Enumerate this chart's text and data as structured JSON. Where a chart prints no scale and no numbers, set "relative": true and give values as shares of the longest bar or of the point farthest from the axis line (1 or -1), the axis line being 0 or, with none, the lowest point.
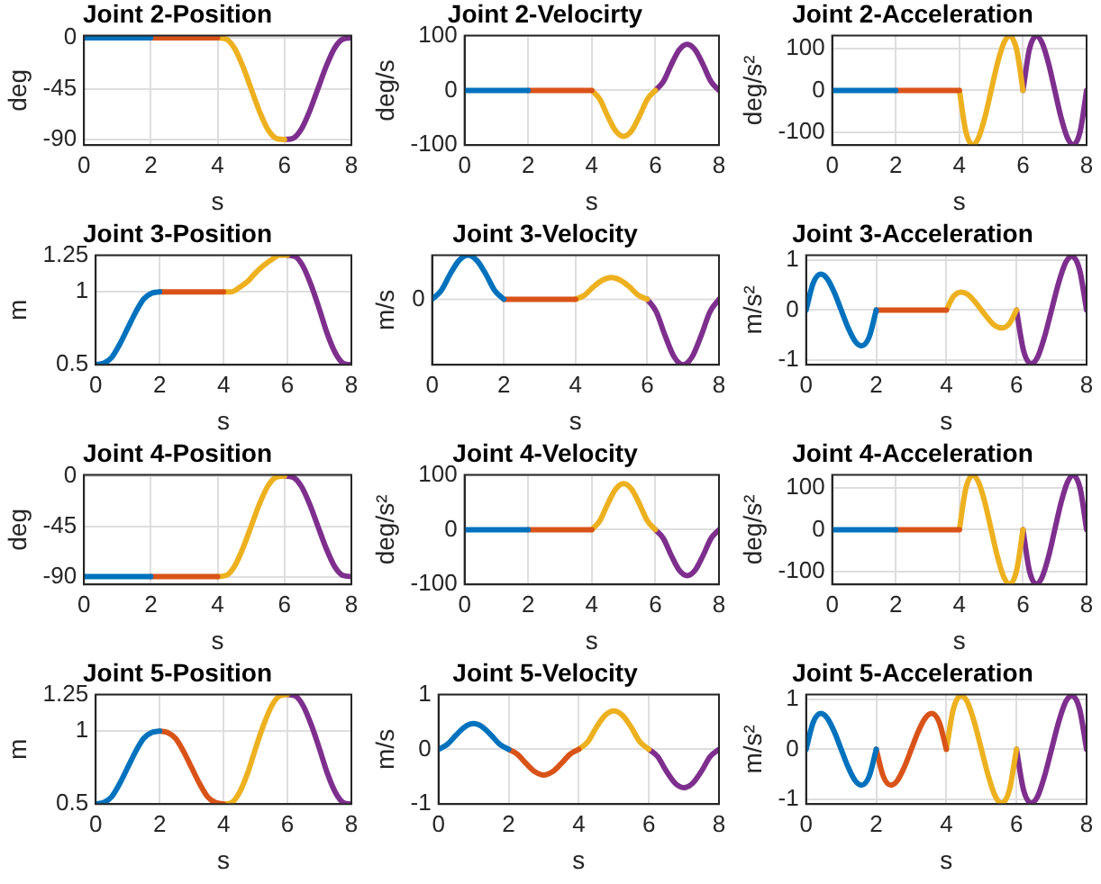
{
  "chart_data": [
    {
      "type": "line",
      "title": "Joint 2-Position",
      "xlabel": "s",
      "ylabel": "deg",
      "xlim": [
        0,
        8
      ],
      "xticks": [
        0,
        2,
        4,
        6,
        8
      ],
      "ylim": [
        -95,
        2
      ],
      "yticks": [
        -90,
        -45,
        0
      ],
      "grid": true,
      "series": [
        {
          "color": "#0072bd",
          "x": [
            0,
            0.25,
            0.5,
            0.75,
            1,
            1.25,
            1.5,
            1.75,
            2
          ],
          "values": [
            0,
            0,
            0,
            0,
            0,
            0,
            0,
            0,
            0
          ]
        },
        {
          "color": "#d95319",
          "x": [
            2,
            2.25,
            2.5,
            2.75,
            3,
            3.25,
            3.5,
            3.75,
            4
          ],
          "values": [
            0,
            0,
            0,
            0,
            0,
            0,
            0,
            0,
            0
          ]
        },
        {
          "color": "#edb120",
          "x": [
            4,
            4.25,
            4.5,
            4.75,
            5,
            5.25,
            5.5,
            5.75,
            6
          ],
          "values": [
            0,
            -1,
            -9,
            -25,
            -45,
            -65,
            -81,
            -89,
            -90
          ]
        },
        {
          "color": "#7e2f8e",
          "x": [
            6,
            6.25,
            6.5,
            6.75,
            7,
            7.25,
            7.5,
            7.75,
            8
          ],
          "values": [
            -90,
            -89,
            -81,
            -65,
            -45,
            -25,
            -9,
            -1,
            0
          ]
        }
      ]
    },
    {
      "type": "line",
      "title": "Joint 2-Velocirty",
      "xlabel": "s",
      "ylabel": "deg/s",
      "xlim": [
        0,
        8
      ],
      "xticks": [
        0,
        2,
        4,
        6,
        8
      ],
      "ylim": [
        -100,
        100
      ],
      "yticks": [
        -100,
        0,
        100
      ],
      "grid": true,
      "series": [
        {
          "color": "#0072bd",
          "x": [
            0,
            0.25,
            0.5,
            0.75,
            1,
            1.25,
            1.5,
            1.75,
            2
          ],
          "values": [
            0,
            0,
            0,
            0,
            0,
            0,
            0,
            0,
            0
          ]
        },
        {
          "color": "#d95319",
          "x": [
            2,
            2.25,
            2.5,
            2.75,
            3,
            3.25,
            3.5,
            3.75,
            4
          ],
          "values": [
            0,
            0,
            0,
            0,
            0,
            0,
            0,
            0,
            0
          ]
        },
        {
          "color": "#edb120",
          "x": [
            4,
            4.25,
            4.5,
            4.75,
            5,
            5.25,
            5.5,
            5.75,
            6
          ],
          "values": [
            0,
            -16,
            -47,
            -74,
            -84,
            -74,
            -47,
            -16,
            0
          ]
        },
        {
          "color": "#7e2f8e",
          "x": [
            6,
            6.25,
            6.5,
            6.75,
            7,
            7.25,
            7.5,
            7.75,
            8
          ],
          "values": [
            0,
            16,
            47,
            74,
            84,
            74,
            47,
            16,
            0
          ]
        }
      ]
    },
    {
      "type": "line",
      "title": "Joint 2-Acceleration",
      "xlabel": "s",
      "ylabel": "deg/s²",
      "xlim": [
        0,
        8
      ],
      "xticks": [
        0,
        2,
        4,
        6,
        8
      ],
      "ylim": [
        -130,
        130
      ],
      "yticks": [
        -100,
        0,
        100
      ],
      "grid": true,
      "series": [
        {
          "color": "#0072bd",
          "x": [
            0,
            0.2,
            0.42,
            0.6,
            0.8,
            1,
            1.2,
            1.4,
            1.58,
            1.8,
            2
          ],
          "values": [
            0,
            0,
            0,
            0,
            0,
            0,
            0,
            0,
            0,
            0,
            0
          ]
        },
        {
          "color": "#d95319",
          "x": [
            2,
            2.2,
            2.42,
            2.6,
            2.8,
            3,
            3.2,
            3.4,
            3.58,
            3.8,
            4
          ],
          "values": [
            0,
            0,
            0,
            0,
            0,
            0,
            0,
            0,
            0,
            0,
            0
          ]
        },
        {
          "color": "#edb120",
          "x": [
            4,
            4.2,
            4.42,
            4.6,
            4.8,
            5,
            5.2,
            5.4,
            5.58,
            5.8,
            6
          ],
          "values": [
            0,
            -97,
            -129,
            -113,
            -65,
            0,
            65,
            113,
            129,
            97,
            0
          ]
        },
        {
          "color": "#7e2f8e",
          "x": [
            6,
            6.2,
            6.42,
            6.6,
            6.8,
            7,
            7.2,
            7.4,
            7.58,
            7.8,
            8
          ],
          "values": [
            0,
            97,
            129,
            113,
            65,
            0,
            -65,
            -113,
            -129,
            -97,
            0
          ]
        }
      ]
    },
    {
      "type": "line",
      "title": "Joint 3-Position",
      "xlabel": "s",
      "ylabel": "m",
      "xlim": [
        0,
        8
      ],
      "xticks": [
        0,
        2,
        4,
        6,
        8
      ],
      "ylim": [
        0.5,
        1.25
      ],
      "yticks": [
        0.5,
        1,
        1.25
      ],
      "grid": true,
      "series": [
        {
          "color": "#0072bd",
          "x": [
            0,
            0.25,
            0.5,
            0.75,
            1,
            1.25,
            1.5,
            1.75,
            2
          ],
          "values": [
            0.5,
            0.51,
            0.55,
            0.64,
            0.75,
            0.86,
            0.95,
            0.99,
            1
          ]
        },
        {
          "color": "#d95319",
          "x": [
            2,
            2.25,
            2.5,
            2.75,
            3,
            3.25,
            3.5,
            3.75,
            4
          ],
          "values": [
            1,
            1,
            1,
            1,
            1,
            1,
            1,
            1,
            1
          ]
        },
        {
          "color": "#edb120",
          "x": [
            4,
            4.25,
            4.5,
            4.75,
            5,
            5.25,
            5.5,
            5.75,
            6
          ],
          "values": [
            1,
            1,
            1.03,
            1.07,
            1.13,
            1.18,
            1.22,
            1.25,
            1.25
          ]
        },
        {
          "color": "#7e2f8e",
          "x": [
            6,
            6.25,
            6.5,
            6.75,
            7,
            7.25,
            7.5,
            7.75,
            8
          ],
          "values": [
            1.25,
            1.24,
            1.17,
            1.04,
            0.88,
            0.71,
            0.58,
            0.51,
            0.5
          ]
        }
      ]
    },
    {
      "type": "line",
      "title": "Joint 3-Velocity",
      "xlabel": "s",
      "ylabel": "m/s",
      "xlim": [
        0,
        8
      ],
      "xticks": [
        0,
        2,
        4,
        6,
        8
      ],
      "relative": true,
      "ref_lines": [
        {
          "axis": "y",
          "value": 0,
          "label": "0",
          "color": "#dedede"
        }
      ],
      "grid": "x",
      "series": [
        {
          "color": "#0072bd",
          "x": [
            0,
            0.25,
            0.5,
            0.75,
            1,
            1.25,
            1.5,
            1.75,
            2
          ],
          "values": [
            0,
            0.13,
            0.38,
            0.59,
            0.67,
            0.59,
            0.38,
            0.13,
            0
          ]
        },
        {
          "color": "#d95319",
          "x": [
            2,
            2.25,
            2.5,
            2.75,
            3,
            3.25,
            3.5,
            3.75,
            4
          ],
          "values": [
            0,
            0,
            0,
            0,
            0,
            0,
            0,
            0,
            0
          ]
        },
        {
          "color": "#edb120",
          "x": [
            4,
            4.25,
            4.5,
            4.75,
            5,
            5.25,
            5.5,
            5.75,
            6
          ],
          "values": [
            0,
            0.06,
            0.19,
            0.29,
            0.33,
            0.29,
            0.19,
            0.06,
            0
          ]
        },
        {
          "color": "#7e2f8e",
          "x": [
            6,
            6.25,
            6.5,
            6.75,
            7,
            7.25,
            7.5,
            7.75,
            8
          ],
          "values": [
            0,
            -0.19,
            -0.56,
            -0.88,
            -1,
            -0.88,
            -0.56,
            -0.19,
            0
          ]
        }
      ]
    },
    {
      "type": "line",
      "title": "Joint 3-Acceleration",
      "xlabel": "s",
      "ylabel": "m/s²",
      "xlim": [
        0,
        8
      ],
      "xticks": [
        0,
        2,
        4,
        6,
        8
      ],
      "ylim": [
        -1.1,
        1.1
      ],
      "yticks": [
        -1,
        0,
        1
      ],
      "grid": true,
      "series": [
        {
          "color": "#0072bd",
          "x": [
            0,
            0.2,
            0.42,
            0.6,
            0.8,
            1,
            1.2,
            1.4,
            1.58,
            1.8,
            2
          ],
          "values": [
            0,
            0.54,
            0.72,
            0.63,
            0.36,
            0,
            -0.36,
            -0.63,
            -0.72,
            -0.54,
            0
          ]
        },
        {
          "color": "#d95319",
          "x": [
            2,
            2.2,
            2.42,
            2.6,
            2.8,
            3,
            3.2,
            3.4,
            3.58,
            3.8,
            4
          ],
          "values": [
            0,
            0,
            0,
            0,
            0,
            0,
            0,
            0,
            0,
            0,
            0
          ]
        },
        {
          "color": "#edb120",
          "x": [
            4,
            4.2,
            4.42,
            4.6,
            4.8,
            5,
            5.2,
            5.4,
            5.58,
            5.8,
            6
          ],
          "values": [
            0,
            0.27,
            0.36,
            0.32,
            0.18,
            0,
            -0.18,
            -0.32,
            -0.36,
            -0.27,
            0
          ]
        },
        {
          "color": "#7e2f8e",
          "x": [
            6,
            6.2,
            6.42,
            6.6,
            6.8,
            7,
            7.2,
            7.4,
            7.58,
            7.8,
            8
          ],
          "values": [
            0,
            -0.81,
            -1.08,
            -0.95,
            -0.54,
            0,
            0.54,
            0.95,
            1.08,
            0.81,
            0
          ]
        }
      ]
    },
    {
      "type": "line",
      "title": "Joint 4-Position",
      "xlabel": "s",
      "ylabel": "deg",
      "xlim": [
        0,
        8
      ],
      "xticks": [
        0,
        2,
        4,
        6,
        8
      ],
      "ylim": [
        -97,
        1
      ],
      "yticks": [
        -90,
        -45,
        0
      ],
      "grid": true,
      "series": [
        {
          "color": "#0072bd",
          "x": [
            0,
            0.25,
            0.5,
            0.75,
            1,
            1.25,
            1.5,
            1.75,
            2
          ],
          "values": [
            -90,
            -90,
            -90,
            -90,
            -90,
            -90,
            -90,
            -90,
            -90
          ]
        },
        {
          "color": "#d95319",
          "x": [
            2,
            2.25,
            2.5,
            2.75,
            3,
            3.25,
            3.5,
            3.75,
            4
          ],
          "values": [
            -90,
            -90,
            -90,
            -90,
            -90,
            -90,
            -90,
            -90,
            -90
          ]
        },
        {
          "color": "#edb120",
          "x": [
            4,
            4.25,
            4.5,
            4.75,
            5,
            5.25,
            5.5,
            5.75,
            6
          ],
          "values": [
            -90,
            -89,
            -81,
            -65,
            -45,
            -25,
            -9,
            -1,
            0
          ]
        },
        {
          "color": "#7e2f8e",
          "x": [
            6,
            6.25,
            6.5,
            6.75,
            7,
            7.25,
            7.5,
            7.75,
            8
          ],
          "values": [
            0,
            -1,
            -9,
            -25,
            -45,
            -65,
            -81,
            -89,
            -90
          ]
        }
      ]
    },
    {
      "type": "line",
      "title": "Joint 4-Velocity",
      "xlabel": "s",
      "ylabel": "deg/s²",
      "xlim": [
        0,
        8
      ],
      "xticks": [
        0,
        2,
        4,
        6,
        8
      ],
      "ylim": [
        -100,
        100
      ],
      "yticks": [
        -100,
        0,
        100
      ],
      "grid": true,
      "series": [
        {
          "color": "#0072bd",
          "x": [
            0,
            0.25,
            0.5,
            0.75,
            1,
            1.25,
            1.5,
            1.75,
            2
          ],
          "values": [
            0,
            0,
            0,
            0,
            0,
            0,
            0,
            0,
            0
          ]
        },
        {
          "color": "#d95319",
          "x": [
            2,
            2.25,
            2.5,
            2.75,
            3,
            3.25,
            3.5,
            3.75,
            4
          ],
          "values": [
            0,
            0,
            0,
            0,
            0,
            0,
            0,
            0,
            0
          ]
        },
        {
          "color": "#edb120",
          "x": [
            4,
            4.25,
            4.5,
            4.75,
            5,
            5.25,
            5.5,
            5.75,
            6
          ],
          "values": [
            0,
            16,
            47,
            74,
            84,
            74,
            47,
            16,
            0
          ]
        },
        {
          "color": "#7e2f8e",
          "x": [
            6,
            6.25,
            6.5,
            6.75,
            7,
            7.25,
            7.5,
            7.75,
            8
          ],
          "values": [
            0,
            -16,
            -47,
            -74,
            -84,
            -74,
            -47,
            -16,
            0
          ]
        }
      ]
    },
    {
      "type": "line",
      "title": "Joint 4-Acceleration",
      "xlabel": "s",
      "ylabel": "deg/s²",
      "xlim": [
        0,
        8
      ],
      "xticks": [
        0,
        2,
        4,
        6,
        8
      ],
      "ylim": [
        -130,
        130
      ],
      "yticks": [
        -100,
        0,
        100
      ],
      "grid": true,
      "series": [
        {
          "color": "#0072bd",
          "x": [
            0,
            0.2,
            0.42,
            0.6,
            0.8,
            1,
            1.2,
            1.4,
            1.58,
            1.8,
            2
          ],
          "values": [
            0,
            0,
            0,
            0,
            0,
            0,
            0,
            0,
            0,
            0,
            0
          ]
        },
        {
          "color": "#d95319",
          "x": [
            2,
            2.2,
            2.42,
            2.6,
            2.8,
            3,
            3.2,
            3.4,
            3.58,
            3.8,
            4
          ],
          "values": [
            0,
            0,
            0,
            0,
            0,
            0,
            0,
            0,
            0,
            0,
            0
          ]
        },
        {
          "color": "#edb120",
          "x": [
            4,
            4.2,
            4.42,
            4.6,
            4.8,
            5,
            5.2,
            5.4,
            5.58,
            5.8,
            6
          ],
          "values": [
            0,
            97,
            129,
            113,
            65,
            0,
            -65,
            -113,
            -129,
            -97,
            0
          ]
        },
        {
          "color": "#7e2f8e",
          "x": [
            6,
            6.2,
            6.42,
            6.6,
            6.8,
            7,
            7.2,
            7.4,
            7.58,
            7.8,
            8
          ],
          "values": [
            0,
            -97,
            -129,
            -113,
            -65,
            0,
            65,
            113,
            129,
            97,
            0
          ]
        }
      ]
    },
    {
      "type": "line",
      "title": "Joint 5-Position",
      "xlabel": "s",
      "ylabel": "m",
      "xlim": [
        0,
        8
      ],
      "xticks": [
        0,
        2,
        4,
        6,
        8
      ],
      "ylim": [
        0.5,
        1.25
      ],
      "yticks": [
        0.5,
        1,
        1.25
      ],
      "grid": true,
      "series": [
        {
          "color": "#0072bd",
          "x": [
            0,
            0.25,
            0.5,
            0.75,
            1,
            1.25,
            1.5,
            1.75,
            2
          ],
          "values": [
            0.5,
            0.51,
            0.55,
            0.64,
            0.75,
            0.86,
            0.95,
            0.99,
            1
          ]
        },
        {
          "color": "#d95319",
          "x": [
            2,
            2.25,
            2.5,
            2.75,
            3,
            3.25,
            3.5,
            3.75,
            4
          ],
          "values": [
            1,
            0.99,
            0.95,
            0.86,
            0.75,
            0.64,
            0.55,
            0.51,
            0.5
          ]
        },
        {
          "color": "#edb120",
          "x": [
            4,
            4.25,
            4.5,
            4.75,
            5,
            5.25,
            5.5,
            5.75,
            6
          ],
          "values": [
            0.5,
            0.51,
            0.58,
            0.71,
            0.88,
            1.04,
            1.17,
            1.24,
            1.25
          ]
        },
        {
          "color": "#7e2f8e",
          "x": [
            6,
            6.25,
            6.5,
            6.75,
            7,
            7.25,
            7.5,
            7.75,
            8
          ],
          "values": [
            1.25,
            1.24,
            1.17,
            1.04,
            0.88,
            0.71,
            0.58,
            0.51,
            0.5
          ]
        }
      ]
    },
    {
      "type": "line",
      "title": "Joint 5-Velocity",
      "xlabel": "s",
      "ylabel": "m/s",
      "xlim": [
        0,
        8
      ],
      "xticks": [
        0,
        2,
        4,
        6,
        8
      ],
      "ylim": [
        -1,
        1
      ],
      "yticks": [
        -1,
        0,
        1
      ],
      "grid": true,
      "series": [
        {
          "color": "#0072bd",
          "x": [
            0,
            0.25,
            0.5,
            0.75,
            1,
            1.25,
            1.5,
            1.75,
            2
          ],
          "values": [
            0,
            0.09,
            0.26,
            0.41,
            0.47,
            0.41,
            0.26,
            0.09,
            0
          ]
        },
        {
          "color": "#d95319",
          "x": [
            2,
            2.25,
            2.5,
            2.75,
            3,
            3.25,
            3.5,
            3.75,
            4
          ],
          "values": [
            0,
            -0.09,
            -0.26,
            -0.41,
            -0.47,
            -0.41,
            -0.26,
            -0.09,
            0
          ]
        },
        {
          "color": "#edb120",
          "x": [
            4,
            4.25,
            4.5,
            4.75,
            5,
            5.25,
            5.5,
            5.75,
            6
          ],
          "values": [
            0,
            0.13,
            0.4,
            0.62,
            0.7,
            0.62,
            0.4,
            0.13,
            0
          ]
        },
        {
          "color": "#7e2f8e",
          "x": [
            6,
            6.25,
            6.5,
            6.75,
            7,
            7.25,
            7.5,
            7.75,
            8
          ],
          "values": [
            0,
            -0.13,
            -0.4,
            -0.62,
            -0.7,
            -0.62,
            -0.4,
            -0.13,
            0
          ]
        }
      ]
    },
    {
      "type": "line",
      "title": "Joint 5-Acceleration",
      "xlabel": "s",
      "ylabel": "m/s²",
      "xlim": [
        0,
        8
      ],
      "xticks": [
        0,
        2,
        4,
        6,
        8
      ],
      "ylim": [
        -1.1,
        1.1
      ],
      "yticks": [
        -1,
        0,
        1
      ],
      "grid": true,
      "series": [
        {
          "color": "#0072bd",
          "x": [
            0,
            0.2,
            0.42,
            0.6,
            0.8,
            1,
            1.2,
            1.4,
            1.58,
            1.8,
            2
          ],
          "values": [
            0,
            0.54,
            0.72,
            0.63,
            0.36,
            0,
            -0.36,
            -0.63,
            -0.72,
            -0.54,
            0
          ]
        },
        {
          "color": "#d95319",
          "x": [
            2,
            2.2,
            2.42,
            2.6,
            2.8,
            3,
            3.2,
            3.4,
            3.58,
            3.8,
            4
          ],
          "values": [
            0,
            -0.54,
            -0.72,
            -0.63,
            -0.36,
            0,
            0.36,
            0.63,
            0.72,
            0.54,
            0
          ]
        },
        {
          "color": "#edb120",
          "x": [
            4,
            4.2,
            4.42,
            4.6,
            4.8,
            5,
            5.2,
            5.4,
            5.58,
            5.8,
            6
          ],
          "values": [
            0,
            0.81,
            1.08,
            0.95,
            0.54,
            0,
            -0.54,
            -0.95,
            -1.08,
            -0.81,
            0
          ]
        },
        {
          "color": "#7e2f8e",
          "x": [
            6,
            6.2,
            6.42,
            6.6,
            6.8,
            7,
            7.2,
            7.4,
            7.58,
            7.8,
            8
          ],
          "values": [
            0,
            -0.81,
            -1.08,
            -0.95,
            -0.54,
            0,
            0.54,
            0.95,
            1.08,
            0.81,
            0
          ]
        }
      ]
    }
  ]
}
